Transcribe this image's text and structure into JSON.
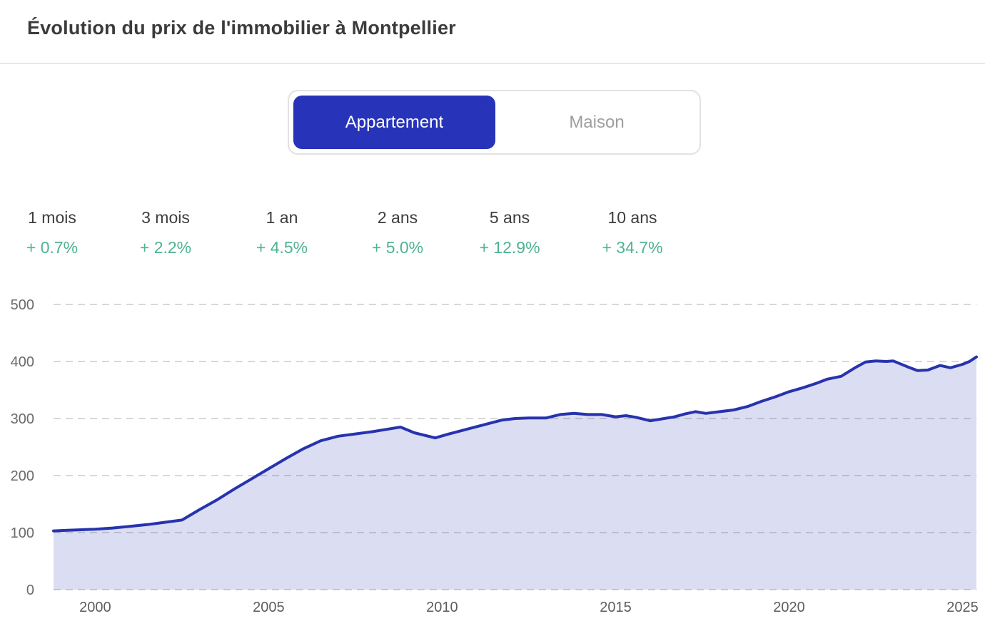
{
  "header": {
    "title": "Évolution du prix de l'immobilier à Montpellier"
  },
  "toggle": {
    "options": [
      {
        "label": "Appartement",
        "selected": true
      },
      {
        "label": "Maison",
        "selected": false
      }
    ]
  },
  "stats": {
    "items": [
      {
        "label": "1 mois",
        "value": "+ 0.7%"
      },
      {
        "label": "3 mois",
        "value": "+ 2.2%"
      },
      {
        "label": "1 an",
        "value": "+ 4.5%"
      },
      {
        "label": "2 ans",
        "value": "+ 5.0%"
      },
      {
        "label": "5 ans",
        "value": "+ 12.9%"
      },
      {
        "label": "10 ans",
        "value": "+ 34.7%"
      }
    ]
  },
  "colors": {
    "accent_blue": "#2733b8",
    "line_blue": "#2733ae",
    "area_fill": "rgba(39,51,184,0.17)",
    "positive_green": "#4eb390",
    "grid_gray": "#d8d8d8"
  },
  "chart_data": {
    "type": "area",
    "title": "Évolution du prix de l'immobilier à Montpellier",
    "selected_series": "Appartement",
    "xlabel": "",
    "ylabel": "",
    "x_domain": [
      1998.8,
      2025.4
    ],
    "y_domain": [
      0,
      500
    ],
    "x_ticks": [
      2000,
      2005,
      2010,
      2015,
      2020,
      2025
    ],
    "y_ticks": [
      0,
      100,
      200,
      300,
      400,
      500
    ],
    "grid": "horizontal-dashed",
    "legend": "none",
    "series": [
      {
        "name": "Appartement",
        "points": [
          [
            1998.8,
            103
          ],
          [
            1999.2,
            104
          ],
          [
            1999.6,
            105
          ],
          [
            2000,
            106
          ],
          [
            2000.5,
            108
          ],
          [
            2001,
            111
          ],
          [
            2001.5,
            114
          ],
          [
            2002,
            118
          ],
          [
            2002.5,
            122
          ],
          [
            2003,
            140
          ],
          [
            2003.5,
            157
          ],
          [
            2004,
            176
          ],
          [
            2004.5,
            194
          ],
          [
            2005,
            212
          ],
          [
            2005.5,
            230
          ],
          [
            2006,
            247
          ],
          [
            2006.5,
            261
          ],
          [
            2007,
            269
          ],
          [
            2007.5,
            273
          ],
          [
            2008,
            277
          ],
          [
            2008.4,
            281
          ],
          [
            2008.8,
            285
          ],
          [
            2009.2,
            275
          ],
          [
            2009.8,
            266
          ],
          [
            2010.2,
            273
          ],
          [
            2010.7,
            281
          ],
          [
            2011.2,
            289
          ],
          [
            2011.7,
            297
          ],
          [
            2012.1,
            300
          ],
          [
            2012.5,
            301
          ],
          [
            2013,
            301
          ],
          [
            2013.4,
            307
          ],
          [
            2013.8,
            309
          ],
          [
            2014.2,
            307
          ],
          [
            2014.6,
            307
          ],
          [
            2015,
            303
          ],
          [
            2015.3,
            305
          ],
          [
            2015.6,
            302
          ],
          [
            2016,
            296
          ],
          [
            2016.4,
            300
          ],
          [
            2016.7,
            303
          ],
          [
            2017,
            308
          ],
          [
            2017.3,
            312
          ],
          [
            2017.6,
            309
          ],
          [
            2018,
            312
          ],
          [
            2018.4,
            315
          ],
          [
            2018.8,
            321
          ],
          [
            2019.2,
            330
          ],
          [
            2019.6,
            338
          ],
          [
            2020,
            347
          ],
          [
            2020.4,
            354
          ],
          [
            2020.8,
            362
          ],
          [
            2021.1,
            369
          ],
          [
            2021.5,
            374
          ],
          [
            2021.9,
            389
          ],
          [
            2022.2,
            399
          ],
          [
            2022.5,
            401
          ],
          [
            2022.8,
            400
          ],
          [
            2023.0,
            401
          ],
          [
            2023.4,
            391
          ],
          [
            2023.7,
            384
          ],
          [
            2024.0,
            385
          ],
          [
            2024.35,
            393
          ],
          [
            2024.65,
            389
          ],
          [
            2025.0,
            395
          ],
          [
            2025.2,
            400
          ],
          [
            2025.4,
            408
          ]
        ]
      }
    ]
  },
  "layout_stats_centers": [
    73,
    232,
    395,
    557,
    714,
    886
  ]
}
